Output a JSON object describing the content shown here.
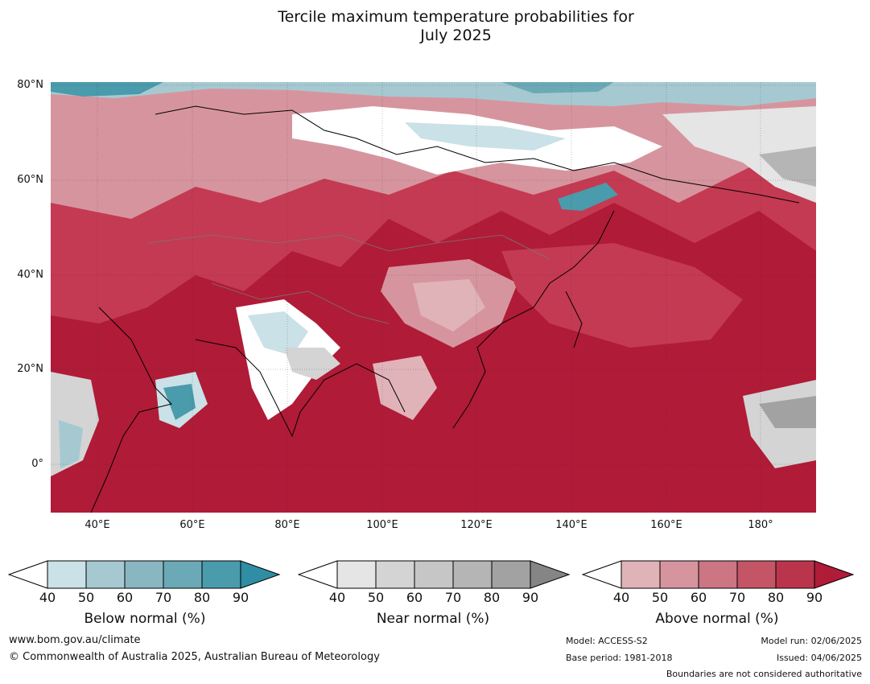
{
  "title_line1": "Tercile maximum temperature probabilities for",
  "title_line2": "July 2025",
  "lat_labels": [
    "80°N",
    "60°N",
    "40°N",
    "20°N",
    "0°"
  ],
  "lon_labels": [
    "40°E",
    "60°E",
    "80°E",
    "100°E",
    "120°E",
    "140°E",
    "160°E",
    "180°"
  ],
  "legends": {
    "below": {
      "label": "Below normal (%)",
      "ticks": [
        "40",
        "50",
        "60",
        "70",
        "80",
        "90"
      ],
      "colors": [
        "#c9e1e7",
        "#a6c9d1",
        "#88b7c2",
        "#6ba9b6",
        "#4a9bab",
        "#2f8ea3"
      ]
    },
    "near": {
      "label": "Near normal (%)",
      "ticks": [
        "40",
        "50",
        "60",
        "70",
        "80",
        "90"
      ],
      "colors": [
        "#e5e5e5",
        "#d4d4d4",
        "#c6c6c6",
        "#b5b5b5",
        "#a2a2a2",
        "#858585"
      ]
    },
    "above": {
      "label": "Above normal (%)",
      "ticks": [
        "40",
        "50",
        "60",
        "70",
        "80",
        "90"
      ],
      "colors": [
        "#e0b3b9",
        "#d6959e",
        "#cc7583",
        "#c35566",
        "#ba354c",
        "#b01b37"
      ]
    }
  },
  "footer": {
    "website": "www.bom.gov.au/climate",
    "copyright": "© Commonwealth of Australia 2025, Australian Bureau of Meteorology",
    "model": "Model: ACCESS-S2",
    "base_period": "Base period: 1981-2018",
    "model_run": "Model run: 02/06/2025",
    "issued": "Issued: 04/06/2025",
    "disclaimer": "Boundaries are not considered authoritative"
  }
}
